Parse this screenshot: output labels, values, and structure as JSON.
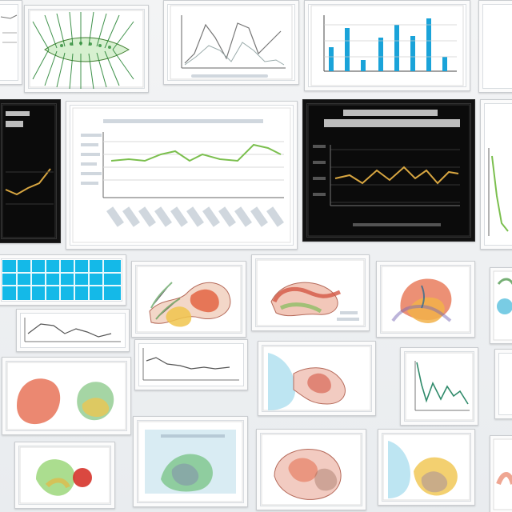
{
  "collage": {
    "background": "#eef0f2",
    "tiles": [
      {
        "kind": "plant-illustration"
      },
      {
        "kind": "line-chart"
      },
      {
        "kind": "bar-chart"
      },
      {
        "kind": "dark-line-chart"
      },
      {
        "kind": "light-line-chart"
      },
      {
        "kind": "dark-line-chart"
      },
      {
        "kind": "cyan-grid-table"
      },
      {
        "kind": "anatomy-illustration"
      },
      {
        "kind": "small-line-chart"
      },
      {
        "kind": "anatomy-illustration"
      }
    ]
  },
  "palette": {
    "dark_bg": "#0b0b0b",
    "gold": "#d8a641",
    "green": "#7bbf4e",
    "cyan": "#14b9e8",
    "blue_bar": "#1aa3d9"
  }
}
